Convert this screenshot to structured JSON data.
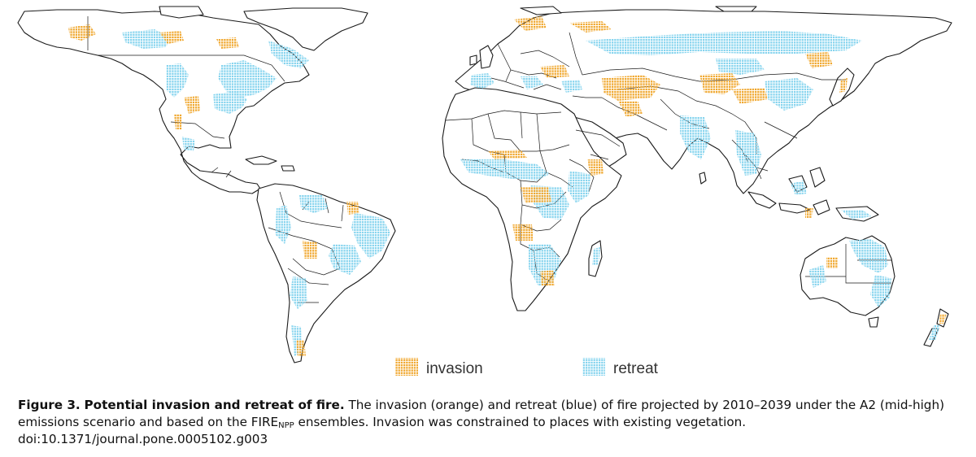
{
  "figure": {
    "caption_label": "Figure 3.",
    "caption_title": "Potential invasion and retreat of fire.",
    "caption_body_1": "The invasion (orange) and retreat (blue) of fire projected by 2010–2039 under the A2 (mid-high) emissions scenario and based on the FIRE",
    "caption_subscript": "NPP",
    "caption_body_2": " ensembles. Invasion was constrained to places with existing vegetation.",
    "doi": "doi:10.1371/journal.pone.0005102.g003"
  },
  "legend": {
    "items": [
      {
        "label": "invasion",
        "color": "#f0a830"
      },
      {
        "label": "retreat",
        "color": "#86d4ee"
      }
    ]
  },
  "map": {
    "land_color": "#ffffff",
    "outline_color": "#1a1a1a",
    "invasion_color": "#f0a830",
    "retreat_color": "#86d4ee"
  }
}
